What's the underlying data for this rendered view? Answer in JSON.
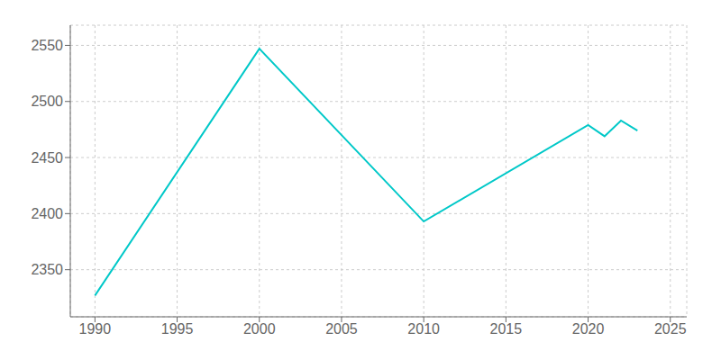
{
  "chart_data": {
    "type": "line",
    "x": [
      1990,
      2000,
      2010,
      2020,
      2021,
      2022,
      2023
    ],
    "values": [
      2327,
      2547,
      2393,
      2479,
      2469,
      2483,
      2474
    ],
    "color": "#00C8C8",
    "xlim": [
      1988.5,
      2026
    ],
    "xticks": [
      1990,
      1995,
      2000,
      2005,
      2010,
      2015,
      2020,
      2025
    ],
    "ylim": [
      2308,
      2568
    ],
    "yticks": [
      2350,
      2400,
      2450,
      2500,
      2550
    ],
    "grid": true
  }
}
